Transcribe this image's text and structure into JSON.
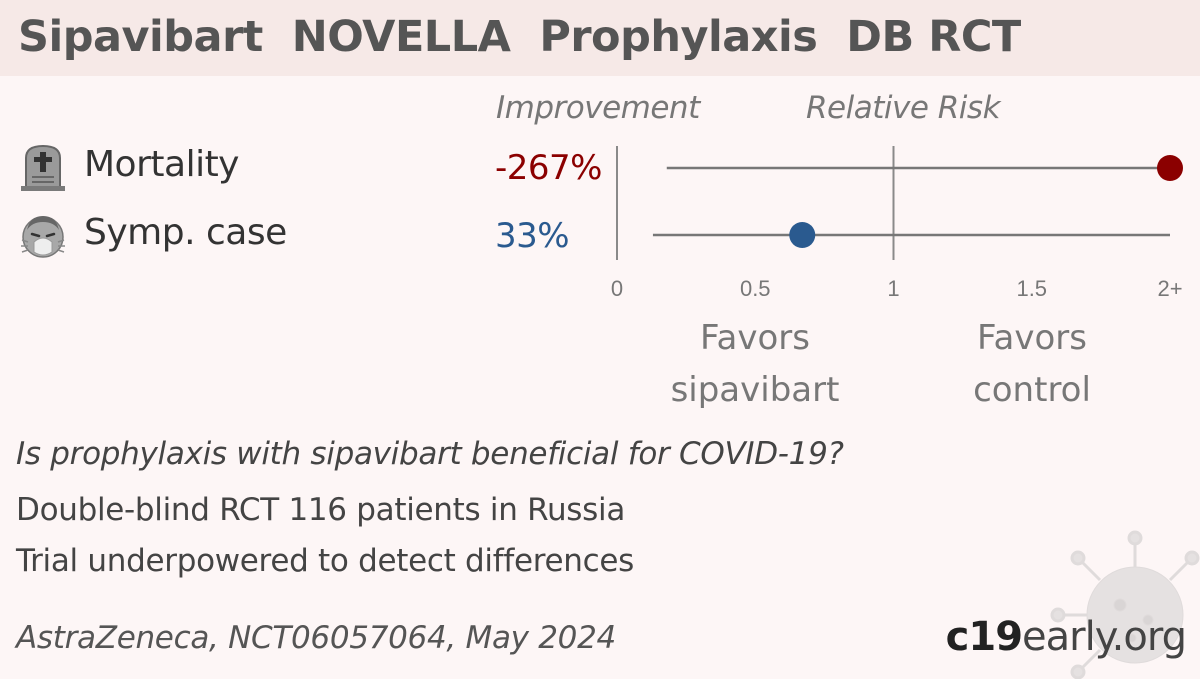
{
  "header": {
    "title": "Sipavibart  NOVELLA  Prophylaxis  DB RCT"
  },
  "columns": {
    "improvement": "Improvement",
    "relative_risk": "Relative Risk"
  },
  "chart_data": {
    "type": "forest",
    "x_ticks": [
      "0",
      "0.5",
      "1",
      "1.5",
      "2+"
    ],
    "xlim": [
      0,
      2
    ],
    "reference_line": 1,
    "rows": [
      {
        "icon": "tombstone-icon",
        "label": "Mortality",
        "improvement": "-267%",
        "rr": 3.67,
        "ci_low": 0.18,
        "ci_high": 2.0,
        "color": "#8b0000"
      },
      {
        "icon": "sneezing-face-icon",
        "label": "Symp. case",
        "improvement": "33%",
        "rr": 0.67,
        "ci_low": 0.13,
        "ci_high": 2.0,
        "color": "#2a5a8f"
      }
    ],
    "favors_left": "Favors\nsipavibart",
    "favors_right": "Favors\ncontrol"
  },
  "question": "Is prophylaxis with sipavibart beneficial for COVID-19?",
  "facts": [
    "Double-blind RCT 116 patients in Russia",
    "Trial underpowered to detect differences"
  ],
  "footer": {
    "source": "AstraZeneca, NCT06057064, May 2024",
    "brand_bold": "c19",
    "brand_rest": "early.org"
  },
  "colors": {
    "header_bg": "#f6e9e7",
    "page_bg": "#fdf6f6",
    "axis": "#8a8a8a",
    "harm": "#8b0000",
    "benefit": "#2a5a8f"
  }
}
